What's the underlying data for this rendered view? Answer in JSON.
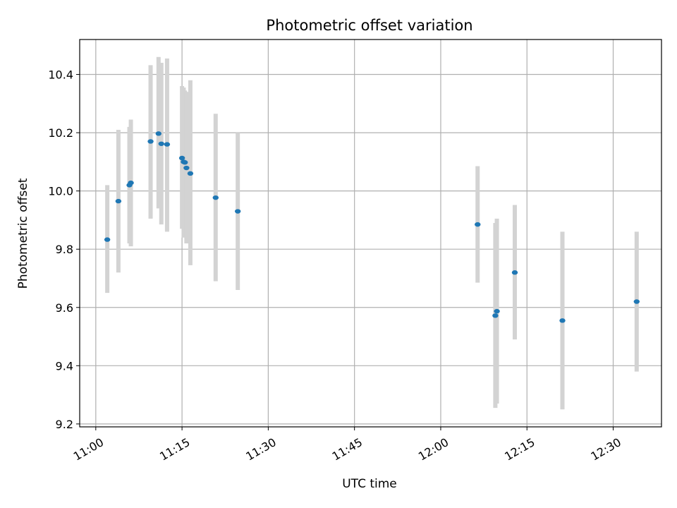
{
  "chart_data": {
    "type": "scatter",
    "title": "Photometric offset variation",
    "xlabel": "UTC time",
    "ylabel": "Photometric offset",
    "xlim": [
      "10:57:12",
      "12:38:24"
    ],
    "ylim": [
      9.19,
      10.52
    ],
    "x_ticks": [
      "11:00",
      "11:15",
      "11:30",
      "11:45",
      "12:00",
      "12:15",
      "12:30"
    ],
    "y_ticks": [
      "9.2",
      "9.4",
      "9.6",
      "9.8",
      "10.0",
      "10.2",
      "10.4"
    ],
    "grid": true,
    "point_color": "#1f77b4",
    "errorbar_color": "#d3d3d3",
    "points": [
      {
        "x": "11:02:00",
        "y": 9.833,
        "err_low": 9.65,
        "err_high": 10.02
      },
      {
        "x": "11:03:56",
        "y": 9.965,
        "err_low": 9.72,
        "err_high": 10.21
      },
      {
        "x": "11:05:51",
        "y": 10.02,
        "err_low": 9.82,
        "err_high": 10.22
      },
      {
        "x": "11:06:06",
        "y": 10.028,
        "err_low": 9.81,
        "err_high": 10.245
      },
      {
        "x": "11:09:32",
        "y": 10.17,
        "err_low": 9.905,
        "err_high": 10.432
      },
      {
        "x": "11:10:55",
        "y": 10.197,
        "err_low": 9.94,
        "err_high": 10.46
      },
      {
        "x": "11:11:24",
        "y": 10.162,
        "err_low": 9.885,
        "err_high": 10.44
      },
      {
        "x": "11:12:24",
        "y": 10.16,
        "err_low": 9.86,
        "err_high": 10.455
      },
      {
        "x": "11:15:00",
        "y": 10.113,
        "err_low": 9.87,
        "err_high": 10.36
      },
      {
        "x": "11:15:17",
        "y": 10.1,
        "err_low": 9.84,
        "err_high": 10.355
      },
      {
        "x": "11:15:30",
        "y": 10.098,
        "err_low": 9.85,
        "err_high": 10.345
      },
      {
        "x": "11:15:46",
        "y": 10.079,
        "err_low": 9.82,
        "err_high": 10.34
      },
      {
        "x": "11:16:27",
        "y": 10.06,
        "err_low": 9.745,
        "err_high": 10.38
      },
      {
        "x": "11:20:51",
        "y": 9.977,
        "err_low": 9.69,
        "err_high": 10.265
      },
      {
        "x": "11:24:42",
        "y": 9.93,
        "err_low": 9.66,
        "err_high": 10.2
      },
      {
        "x": "12:06:25",
        "y": 9.885,
        "err_low": 9.685,
        "err_high": 10.085
      },
      {
        "x": "12:09:30",
        "y": 9.572,
        "err_low": 9.255,
        "err_high": 9.89
      },
      {
        "x": "12:09:46",
        "y": 9.587,
        "err_low": 9.27,
        "err_high": 9.905
      },
      {
        "x": "12:12:53",
        "y": 9.72,
        "err_low": 9.49,
        "err_high": 9.952
      },
      {
        "x": "12:21:10",
        "y": 9.555,
        "err_low": 9.25,
        "err_high": 9.86
      },
      {
        "x": "12:34:05",
        "y": 9.62,
        "err_low": 9.38,
        "err_high": 9.86
      }
    ]
  }
}
